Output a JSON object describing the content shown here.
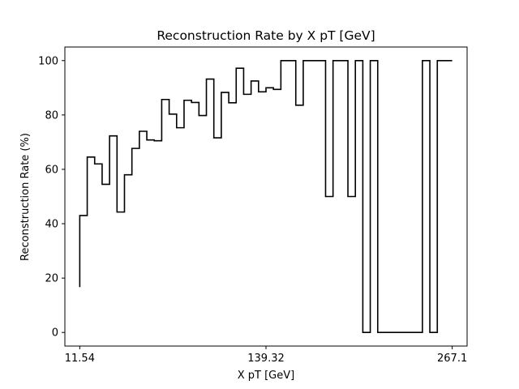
{
  "chart_data": {
    "type": "line",
    "style": "step",
    "title": "Reconstruction Rate by X pT [GeV]",
    "xlabel": "X pT [GeV]",
    "ylabel": "Reconstruction Rate (%)",
    "xlim": [
      -0.04,
      1.04
    ],
    "ylim": [
      -5,
      105
    ],
    "x_tick_values": [
      0,
      0.5,
      1
    ],
    "x_tick_labels": [
      "11.54",
      "139.32",
      "267.1"
    ],
    "y_ticks": [
      0,
      20,
      40,
      60,
      80,
      100
    ],
    "grid": false,
    "line_color": "#000000",
    "bin_edges": [
      0,
      0.02,
      0.04,
      0.06,
      0.08,
      0.1,
      0.12,
      0.14,
      0.16,
      0.18,
      0.2,
      0.22,
      0.24,
      0.26,
      0.28,
      0.3,
      0.32,
      0.34,
      0.36,
      0.38,
      0.4,
      0.42,
      0.44,
      0.46,
      0.48,
      0.5,
      0.52,
      0.54,
      0.56,
      0.58,
      0.6,
      0.62,
      0.64,
      0.66,
      0.68,
      0.7,
      0.72,
      0.74,
      0.76,
      0.78,
      0.8,
      0.82,
      0.84,
      0.86,
      0.88,
      0.9,
      0.92,
      0.94,
      0.96,
      0.98,
      1.0
    ],
    "values": [
      43,
      64.5,
      62,
      54.5,
      72.3,
      44.3,
      58,
      67.7,
      74,
      70.8,
      70.5,
      85.7,
      80.3,
      75.3,
      85.4,
      84.6,
      79.8,
      93.2,
      71.6,
      88.3,
      84.5,
      97.2,
      87.6,
      92.5,
      88.5,
      90,
      89.4,
      100,
      100,
      83.6,
      100,
      100,
      100,
      50,
      100,
      100,
      50,
      100,
      0,
      100,
      0,
      0,
      0,
      0,
      0,
      0,
      100,
      0,
      100,
      100
    ],
    "initial_value": 16.7
  }
}
